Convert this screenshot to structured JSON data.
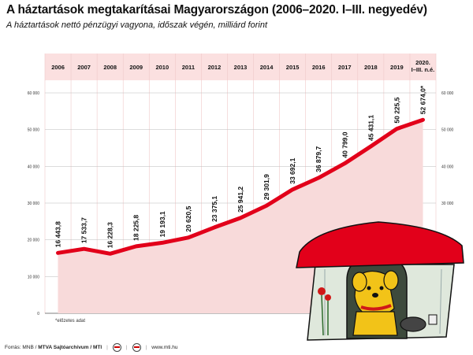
{
  "header": {
    "title": "A háztartások megtakarításai Magyarországon (2006–2020. I–III. negyedév)",
    "subtitle": "A háztartások nettó pénzügyi vagyona, időszak végén, milliárd forint"
  },
  "chart_data": {
    "type": "area",
    "categories": [
      "2006",
      "2007",
      "2008",
      "2009",
      "2010",
      "2011",
      "2012",
      "2013",
      "2014",
      "2015",
      "2016",
      "2017",
      "2018",
      "2019",
      "2020. I–III. n.é."
    ],
    "values": [
      16443.8,
      17533.7,
      16228.3,
      18225.8,
      19193.1,
      20620.5,
      23375.1,
      25941.2,
      29301.9,
      33692.1,
      36879.7,
      40799.0,
      45431.1,
      50225.5,
      52674.0
    ],
    "value_labels": [
      "16 443,8",
      "17 533,7",
      "16 228,3",
      "18 225,8",
      "19 193,1",
      "20 620,5",
      "23 375,1",
      "25 941,2",
      "29 301,9",
      "33 692,1",
      "36 879,7",
      "40 799,0",
      "45 431,1",
      "50 225,5",
      "52 674,0*"
    ],
    "yticks": [
      0,
      10000,
      20000,
      30000,
      40000,
      50000,
      60000
    ],
    "ytick_labels": [
      "0",
      "10 000",
      "20 000",
      "30 000",
      "40 000",
      "50 000",
      "60 000"
    ],
    "ylim": [
      0,
      60000
    ],
    "grid": true,
    "colors": {
      "area": "#f8dada",
      "line": "#e2001a",
      "band": "#fbe0e0"
    }
  },
  "note": "*előzetes adat",
  "footer": {
    "source": "Forrás: MNB / ",
    "agency": "MTVA Sajtóarchívum / MTI",
    "url": "www.mti.hu"
  }
}
